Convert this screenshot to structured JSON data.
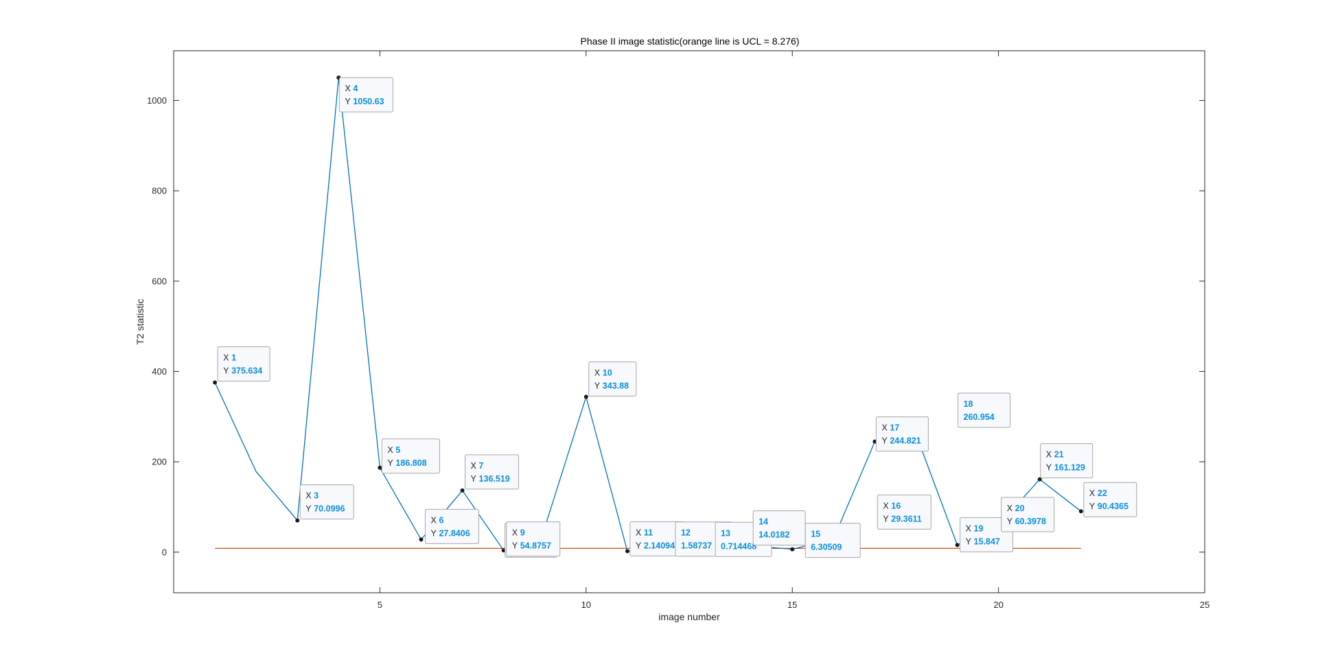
{
  "chart_data": {
    "type": "line",
    "title": "Phase II image statistic(orange line is UCL = 8.276)",
    "xlabel": "image number",
    "ylabel": "T2 statistic",
    "xlim": [
      0,
      25
    ],
    "ylim": [
      -90,
      1110
    ],
    "xticks": [
      5,
      10,
      15,
      20,
      25
    ],
    "yticks": [
      0,
      200,
      400,
      600,
      800,
      1000
    ],
    "grid": false,
    "series": [
      {
        "color": "#0072bd",
        "x": [
          1,
          2,
          3,
          4,
          5,
          6,
          7,
          8,
          9,
          10,
          11,
          12,
          13,
          14,
          15,
          16,
          17,
          18,
          19,
          20,
          21,
          22
        ],
        "values": [
          375.634,
          178,
          70.0996,
          1050.63,
          186.808,
          27.8406,
          136.519,
          3.86541,
          54.8757,
          343.88,
          2.14094,
          1.58737,
          0.714468,
          14.0182,
          6.30509,
          29.3611,
          244.821,
          260.954,
          15.847,
          60.3978,
          161.129,
          90.4365
        ]
      },
      {
        "color": "#d95319",
        "x": [
          1,
          22
        ],
        "values": [
          8.276,
          8.276
        ]
      }
    ],
    "datatips": [
      {
        "x": "1",
        "y": "375.634",
        "x_prefix": "X",
        "y_prefix": "Y",
        "point": [
          1,
          375.634
        ]
      },
      {
        "x": "3",
        "y": "70.0996",
        "x_prefix": "X",
        "y_prefix": "Y",
        "point": [
          3,
          70.0996
        ]
      },
      {
        "x": "4",
        "y": "1050.63",
        "x_prefix": "X",
        "y_prefix": "Y",
        "point": [
          4,
          1050.63
        ]
      },
      {
        "x": "5",
        "y": "186.808",
        "x_prefix": "X",
        "y_prefix": "Y",
        "point": [
          5,
          186.808
        ]
      },
      {
        "x": "6",
        "y": "27.8406",
        "x_prefix": "X",
        "y_prefix": "Y",
        "point": [
          6,
          27.8406
        ]
      },
      {
        "x": "7",
        "y": "136.519",
        "x_prefix": "X",
        "y_prefix": "Y",
        "point": [
          7,
          136.519
        ]
      },
      {
        "x": "8",
        "y": "3.86541",
        "x_prefix": "X",
        "y_prefix": "Y",
        "point": [
          8,
          3.86541
        ]
      },
      {
        "x": "9",
        "y": "54.8757",
        "x_prefix": "X",
        "y_prefix": "Y",
        "point": [
          9,
          54.8757
        ]
      },
      {
        "x": "10",
        "y": "343.88",
        "x_prefix": "X",
        "y_prefix": "Y",
        "point": [
          10,
          343.88
        ]
      },
      {
        "x": "11",
        "y": "2.14094",
        "x_prefix": "X",
        "y_prefix": "Y",
        "point": [
          11,
          2.14094
        ]
      },
      {
        "x": "12",
        "y": "1.58737",
        "x_prefix": "",
        "y_prefix": "",
        "point": [
          12,
          1.58737
        ]
      },
      {
        "x": "13",
        "y": "0.714468",
        "x_prefix": "",
        "y_prefix": "",
        "point": [
          13,
          0.714468
        ]
      },
      {
        "x": "14",
        "y": "14.0182",
        "x_prefix": "",
        "y_prefix": "",
        "point": [
          14,
          14.0182
        ]
      },
      {
        "x": "15",
        "y": "6.30509",
        "x_prefix": "",
        "y_prefix": "",
        "point": [
          15,
          6.30509
        ]
      },
      {
        "x": "16",
        "y": "29.3611",
        "x_prefix": "X",
        "y_prefix": "Y",
        "point": [
          16,
          29.3611
        ]
      },
      {
        "x": "17",
        "y": "244.821",
        "x_prefix": "X",
        "y_prefix": "Y",
        "point": [
          17,
          244.821
        ]
      },
      {
        "x": "18",
        "y": "260.954",
        "x_prefix": "",
        "y_prefix": "",
        "point": [
          18,
          260.954
        ]
      },
      {
        "x": "19",
        "y": "15.847",
        "x_prefix": "X",
        "y_prefix": "Y",
        "point": [
          19,
          15.847
        ]
      },
      {
        "x": "20",
        "y": "60.3978",
        "x_prefix": "X",
        "y_prefix": "Y",
        "point": [
          20,
          60.3978
        ]
      },
      {
        "x": "21",
        "y": "161.129",
        "x_prefix": "X",
        "y_prefix": "Y",
        "point": [
          21,
          161.129
        ]
      },
      {
        "x": "22",
        "y": "90.4365",
        "x_prefix": "X",
        "y_prefix": "Y",
        "point": [
          22,
          90.4365
        ]
      }
    ]
  }
}
